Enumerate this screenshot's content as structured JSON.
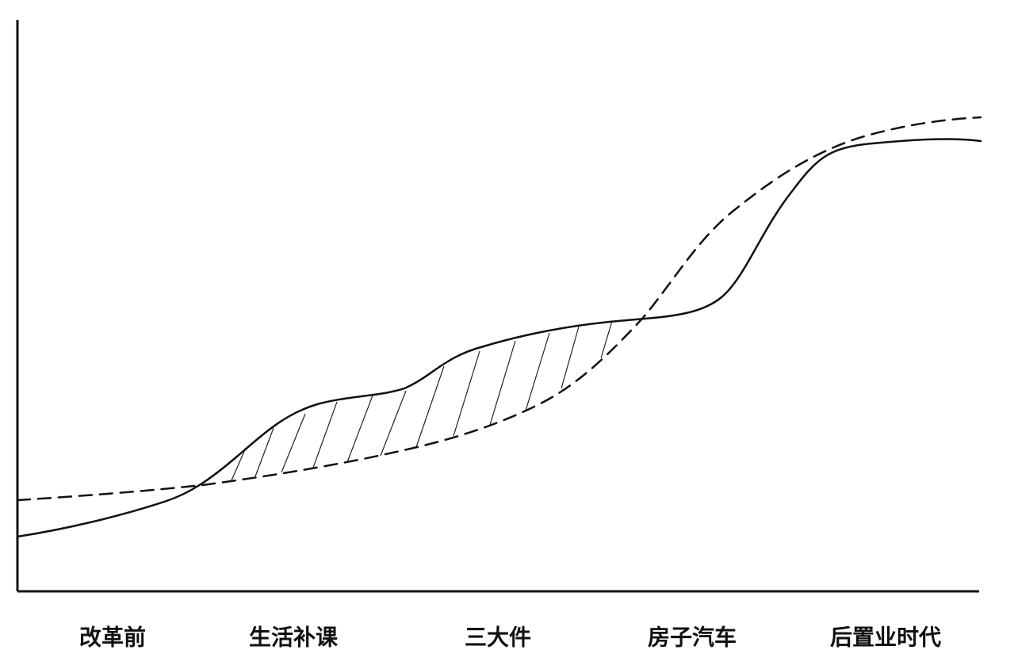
{
  "labels": [
    "改革前",
    "生活补课",
    "三大件",
    "房子汽车",
    "后置业时代"
  ]
}
